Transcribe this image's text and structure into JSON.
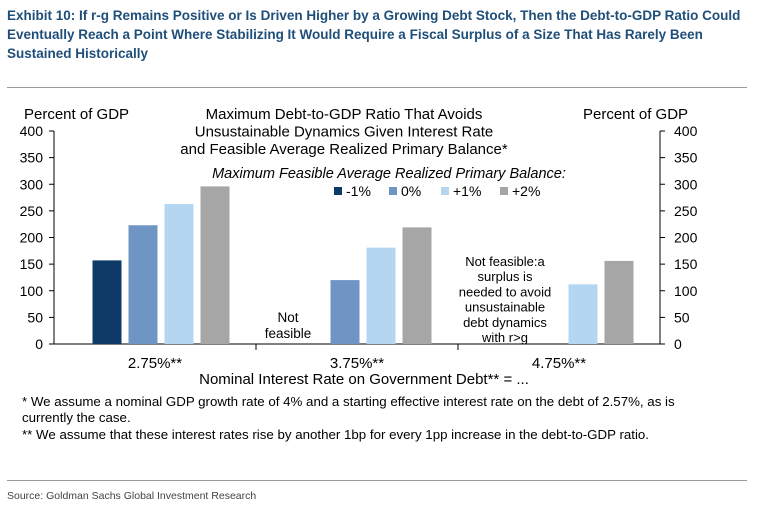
{
  "exhibit": {
    "title": "Exhibit 10: If r-g Remains Positive or Is Driven Higher by a Growing Debt Stock, Then the Debt-to-GDP Ratio Could Eventually Reach a Point Where Stabilizing It Would Require a Fiscal Surplus of a Size That Has Rarely Been Sustained Historically"
  },
  "chart_data": {
    "type": "bar",
    "title_lines": [
      "Maximum Debt-to-GDP Ratio That Avoids",
      "Unsustainable Dynamics Given Interest Rate",
      "and Feasible Average Realized Primary Balance*"
    ],
    "legend_title": "Maximum Feasible Average Realized Primary Balance:",
    "legend_placement": "top-center",
    "ylabel_left": "Percent of GDP",
    "ylabel_right": "Percent of GDP",
    "xlabel": "Nominal Interest Rate on Government Debt** = ...",
    "ylim": [
      0,
      400
    ],
    "yticks": [
      0,
      50,
      100,
      150,
      200,
      250,
      300,
      350,
      400
    ],
    "categories": [
      "2.75%**",
      "3.75%**",
      "4.75%**"
    ],
    "series": [
      {
        "name": "-1%",
        "color": "#0d3a66",
        "values": [
          157,
          null,
          null
        ]
      },
      {
        "name": "0%",
        "color": "#6f95c5",
        "values": [
          223,
          120,
          null
        ]
      },
      {
        "name": "+1%",
        "color": "#b4d6f0",
        "values": [
          263,
          181,
          112
        ]
      },
      {
        "name": "+2%",
        "color": "#a6a6a6",
        "values": [
          296,
          219,
          156
        ]
      }
    ],
    "annotations": {
      "not_feasible": [
        "Not",
        "feasible"
      ],
      "not_feasible_long": [
        "Not feasible:a",
        "surplus is",
        "needed to avoid",
        "unsustainable",
        "debt dynamics",
        "with r>g"
      ]
    },
    "grid": false
  },
  "footnotes": {
    "note1": "* We assume a nominal GDP growth rate of 4% and a starting effective interest rate on the debt of 2.57%, as is currently the case.",
    "note2": "** We assume that these interest rates rise by another 1bp for every 1pp increase in the debt-to-GDP ratio."
  },
  "source": "Source: Goldman Sachs Global Investment Research"
}
